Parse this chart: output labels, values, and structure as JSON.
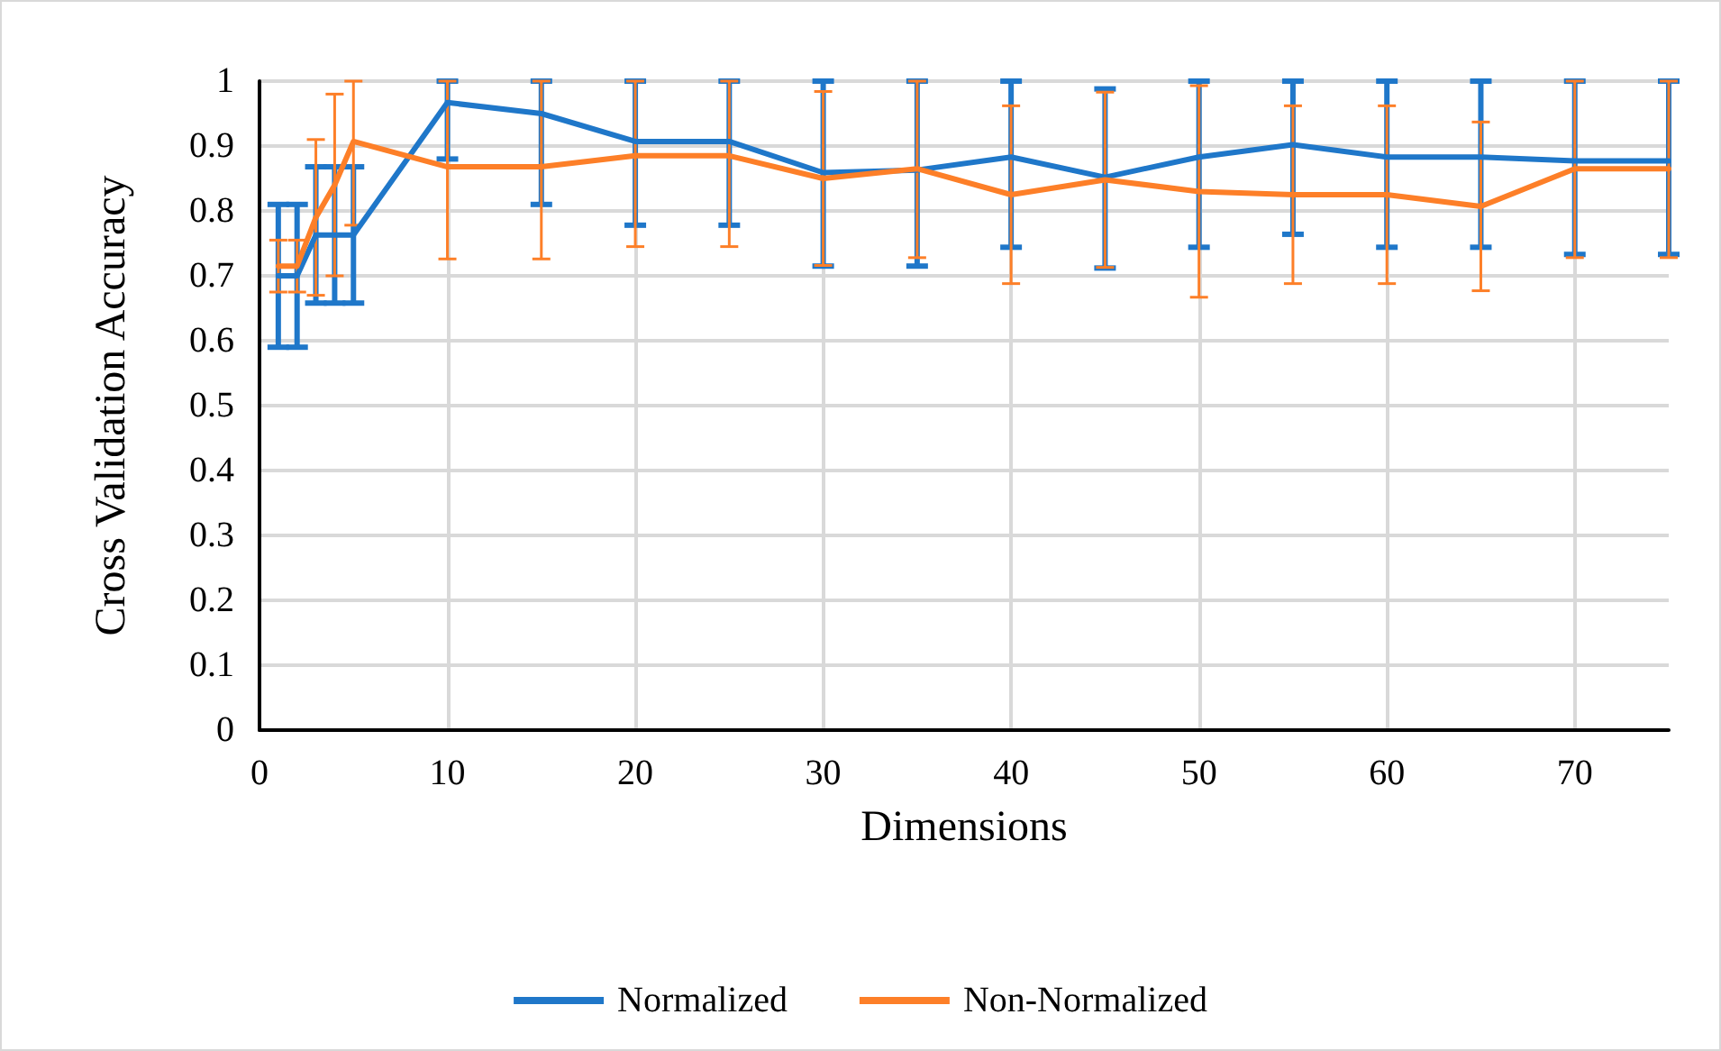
{
  "chart_data": {
    "type": "line",
    "xlabel": "Dimensions",
    "ylabel": "Cross Validation Accuracy",
    "x": [
      1,
      2,
      3,
      4,
      5,
      10,
      15,
      20,
      25,
      30,
      35,
      40,
      45,
      50,
      55,
      60,
      65,
      70,
      75
    ],
    "series": [
      {
        "name": "Normalized",
        "color": "#1f77c9",
        "values": [
          0.7,
          0.7,
          0.763,
          0.763,
          0.763,
          0.967,
          0.95,
          0.907,
          0.907,
          0.859,
          0.863,
          0.883,
          0.852,
          0.883,
          0.902,
          0.883,
          0.883,
          0.877,
          0.877
        ],
        "errors": [
          0.11,
          0.11,
          0.105,
          0.105,
          0.105,
          [
            0.88,
            1
          ],
          [
            0.81,
            1
          ],
          [
            0.778,
            1
          ],
          [
            0.778,
            1
          ],
          [
            0.715,
            1
          ],
          [
            0.715,
            1
          ],
          [
            0.744,
            1
          ],
          [
            0.712,
            0.988
          ],
          [
            0.744,
            1
          ],
          [
            0.764,
            1
          ],
          [
            0.744,
            1
          ],
          [
            0.744,
            1
          ],
          [
            0.733,
            1
          ],
          [
            0.733,
            1
          ]
        ]
      },
      {
        "name": "Non-Normalized",
        "color": "#fd7f28",
        "values": [
          0.715,
          0.715,
          0.79,
          0.84,
          0.907,
          0.868,
          0.868,
          0.885,
          0.885,
          0.85,
          0.865,
          0.825,
          0.848,
          0.83,
          0.825,
          0.825,
          0.807,
          0.865,
          0.865
        ],
        "errors": [
          0.04,
          0.04,
          0.12,
          0.14,
          [
            0.778,
            1
          ],
          [
            0.726,
            1
          ],
          [
            0.726,
            1
          ],
          [
            0.745,
            1
          ],
          [
            0.745,
            1
          ],
          0.134,
          [
            0.728,
            1
          ],
          0.137,
          0.135,
          0.163,
          0.137,
          0.137,
          0.13,
          [
            0.728,
            1
          ],
          [
            0.728,
            1
          ]
        ]
      }
    ],
    "xlim": [
      0,
      75
    ],
    "xticks": [
      0,
      10,
      20,
      30,
      40,
      50,
      60,
      70
    ],
    "ylim": [
      0,
      1
    ],
    "yticks": [
      0,
      0.1,
      0.2,
      0.3,
      0.4,
      0.5,
      0.6,
      0.7,
      0.8,
      0.9,
      1
    ],
    "grid": true,
    "legend": "bottom",
    "marker": "none",
    "line_style": "solid"
  }
}
